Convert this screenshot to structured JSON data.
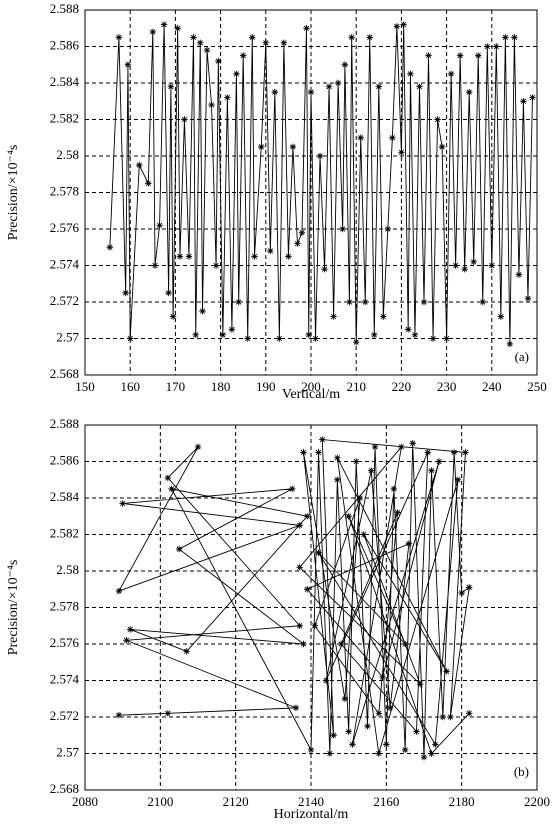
{
  "chart_data": [
    {
      "type": "line",
      "label": "(a)",
      "xlabel": "Vertical/m",
      "ylabel": "Precision/×10⁻⁴s",
      "color": "#000000",
      "marker": "*",
      "grid": true,
      "xlim": [
        150,
        250
      ],
      "xticks": [
        150,
        160,
        170,
        180,
        190,
        200,
        210,
        220,
        230,
        240,
        250
      ],
      "ylim": [
        2.568,
        2.588
      ],
      "yticks": [
        2.568,
        2.57,
        2.572,
        2.574,
        2.576,
        2.578,
        2.58,
        2.582,
        2.584,
        2.586,
        2.588
      ],
      "x": [
        155.5,
        157.5,
        159,
        159.5,
        160,
        162,
        164,
        165,
        165.5,
        166.5,
        167.5,
        168.5,
        169,
        169.5,
        170.5,
        171,
        172,
        173,
        174,
        174.5,
        175.5,
        176,
        177,
        178,
        179,
        179.5,
        180.5,
        181.5,
        182.5,
        183.5,
        184,
        185,
        186,
        187,
        187.5,
        189,
        190,
        191,
        192,
        193,
        194,
        195,
        196,
        197,
        198,
        199,
        199.5,
        200,
        201,
        202,
        203,
        204,
        205,
        206,
        207,
        207.5,
        208.5,
        209,
        210,
        211,
        212,
        213,
        214,
        215,
        216,
        217,
        218,
        219,
        220,
        220.5,
        221.5,
        222,
        223,
        224,
        225,
        226,
        227,
        228,
        229,
        230,
        231,
        232,
        233,
        234,
        235,
        236,
        237,
        238,
        239,
        240,
        241,
        242,
        243,
        244,
        245,
        246,
        247,
        248,
        249
      ],
      "values": [
        2.575,
        2.5865,
        2.5725,
        2.585,
        2.57,
        2.5795,
        2.5785,
        2.5868,
        2.574,
        2.5762,
        2.5872,
        2.5725,
        2.5838,
        2.5712,
        2.587,
        2.5745,
        2.582,
        2.5745,
        2.5865,
        2.5702,
        2.5862,
        2.5715,
        2.5858,
        2.5828,
        2.574,
        2.5852,
        2.5702,
        2.5832,
        2.5705,
        2.5845,
        2.572,
        2.5855,
        2.57,
        2.5865,
        2.5745,
        2.5805,
        2.5862,
        2.5748,
        2.5835,
        2.57,
        2.5862,
        2.5745,
        2.5805,
        2.5752,
        2.5758,
        2.587,
        2.5702,
        2.5835,
        2.57,
        2.58,
        2.5738,
        2.5838,
        2.5712,
        2.584,
        2.576,
        2.585,
        2.572,
        2.5865,
        2.5698,
        2.581,
        2.572,
        2.5865,
        2.5702,
        2.5838,
        2.5712,
        2.576,
        2.581,
        2.5871,
        2.5802,
        2.5872,
        2.5705,
        2.5845,
        2.5702,
        2.5838,
        2.572,
        2.5855,
        2.57,
        2.582,
        2.5805,
        2.57,
        2.5845,
        2.574,
        2.5855,
        2.5738,
        2.5835,
        2.5742,
        2.5855,
        2.572,
        2.586,
        2.574,
        2.586,
        2.5712,
        2.5865,
        2.5697,
        2.5865,
        2.5735,
        2.583,
        2.5722,
        2.5832
      ]
    },
    {
      "type": "line",
      "label": "(b)",
      "xlabel": "Horizontal/m",
      "ylabel": "Precision/×10⁻⁴s",
      "color": "#000000",
      "marker": "*",
      "grid": true,
      "xlim": [
        2080,
        2200
      ],
      "xticks": [
        2080,
        2100,
        2120,
        2140,
        2160,
        2180,
        2200
      ],
      "ylim": [
        2.568,
        2.588
      ],
      "yticks": [
        2.568,
        2.57,
        2.572,
        2.574,
        2.576,
        2.578,
        2.58,
        2.582,
        2.584,
        2.586,
        2.588
      ],
      "x": [
        2089,
        2102,
        2136,
        2091,
        2137,
        2102,
        2110,
        2089,
        2137,
        2090,
        2135,
        2105,
        2138,
        2092,
        2107,
        2139,
        2103,
        2140,
        2142,
        2145,
        2147,
        2150,
        2152,
        2155,
        2157,
        2160,
        2162,
        2165,
        2167,
        2170,
        2172,
        2175,
        2178,
        2180,
        2182,
        2177,
        2181,
        2143,
        2146,
        2138,
        2149,
        2153,
        2141,
        2158,
        2163,
        2148,
        2168,
        2171,
        2144,
        2156,
        2161,
        2166,
        2139,
        2159,
        2174,
        2151,
        2164,
        2137,
        2169,
        2154,
        2176,
        2147,
        2158,
        2179,
        2173,
        2142,
        2165,
        2150,
        2172,
        2182
      ],
      "values": [
        2.5721,
        2.5722,
        2.5725,
        2.5762,
        2.577,
        2.5851,
        2.5868,
        2.5789,
        2.5825,
        2.5837,
        2.5845,
        2.5812,
        2.576,
        2.5768,
        2.5756,
        2.583,
        2.5845,
        2.5702,
        2.5865,
        2.57,
        2.585,
        2.5712,
        2.586,
        2.5715,
        2.5868,
        2.5705,
        2.5845,
        2.5702,
        2.587,
        2.5698,
        2.5855,
        2.572,
        2.5865,
        2.5788,
        2.5791,
        2.572,
        2.5865,
        2.5872,
        2.571,
        2.5865,
        2.573,
        2.584,
        2.577,
        2.5722,
        2.5832,
        2.576,
        2.5712,
        2.5865,
        2.574,
        2.5855,
        2.5725,
        2.5815,
        2.579,
        2.5742,
        2.586,
        2.5705,
        2.5868,
        2.5802,
        2.5738,
        2.582,
        2.5745,
        2.5862,
        2.57,
        2.585,
        2.5705,
        2.581,
        2.576,
        2.583,
        2.57,
        2.5722
      ]
    }
  ]
}
